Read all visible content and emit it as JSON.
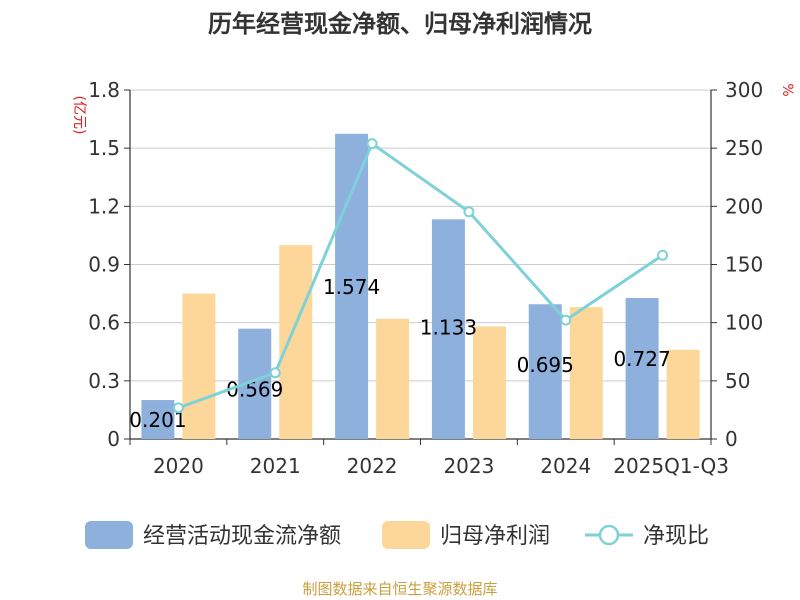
{
  "chart_data": {
    "type": "bar",
    "title": "历年经营现金净额、归母净利润情况",
    "categories": [
      "2020",
      "2021",
      "2022",
      "2023",
      "2024",
      "2025Q1-Q3"
    ],
    "series": [
      {
        "name": "经营活动现金流净额",
        "kind": "bar",
        "axis": "left",
        "color": "#8eb0dd",
        "values": [
          0.201,
          0.569,
          1.574,
          1.133,
          0.695,
          0.727
        ],
        "labels": [
          "0.201",
          "0.569",
          "1.574",
          "1.133",
          "0.695",
          "0.727"
        ]
      },
      {
        "name": "归母净利润",
        "kind": "bar",
        "axis": "left",
        "color": "#fdd79a",
        "values": [
          0.75,
          1.0,
          0.62,
          0.58,
          0.68,
          0.46
        ]
      },
      {
        "name": "净现比",
        "kind": "line",
        "axis": "right",
        "color": "#7fd1d8",
        "values": [
          26.8,
          56.9,
          253.9,
          195.3,
          102.2,
          158.0
        ]
      }
    ],
    "left_axis": {
      "unit": "(亿元)",
      "min": 0,
      "max": 1.8,
      "ticks": [
        "0",
        "0.3",
        "0.6",
        "0.9",
        "1.2",
        "1.5",
        "1.8"
      ]
    },
    "right_axis": {
      "unit": "%",
      "min": 0,
      "max": 300,
      "ticks": [
        "0",
        "50",
        "100",
        "150",
        "200",
        "250",
        "300"
      ]
    },
    "grid": true,
    "legend_position": "bottom"
  },
  "source_text": "制图数据来自恒生聚源数据库",
  "colors": {
    "title": "#333333",
    "axis": "#333333",
    "grid": "#cccccc",
    "unit": "#e02020",
    "source": "#c8a040"
  }
}
